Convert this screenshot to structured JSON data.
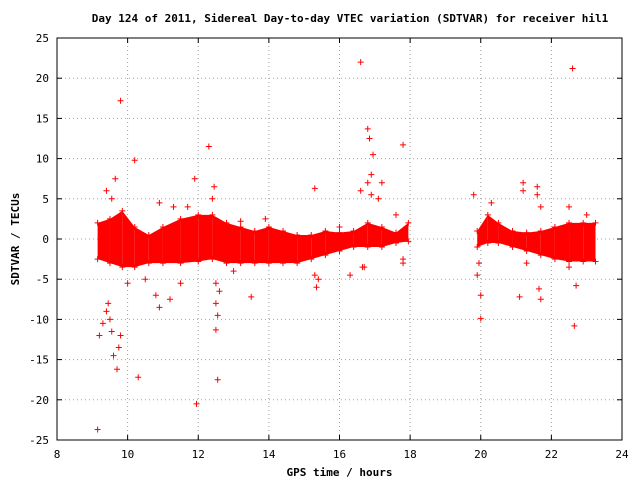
{
  "chart_data": {
    "type": "scatter",
    "title": "Day 124 of 2011, Sidereal Day-to-day VTEC variation (SDTVAR) for receiver hil1",
    "xlabel": "GPS time / hours",
    "ylabel": "SDTVAR / TECUs",
    "xlim": [
      8,
      24
    ],
    "ylim": [
      -25,
      25
    ],
    "x_ticks": [
      "8",
      "10",
      "12",
      "14",
      "16",
      "18",
      "20",
      "22",
      "24"
    ],
    "y_ticks": [
      "25",
      "20",
      "15",
      "10",
      "5",
      "0",
      "-5",
      "-10",
      "-15",
      "-20",
      "-25"
    ],
    "grid": true,
    "marker": "+",
    "color": "#ff0000",
    "series": [
      {
        "bands": [
          {
            "x": 9.15,
            "low": -2.5,
            "high": 2.0
          },
          {
            "x": 9.5,
            "low": -3.0,
            "high": 2.5
          },
          {
            "x": 9.85,
            "low": -3.5,
            "high": 3.5
          },
          {
            "x": 10.2,
            "low": -3.5,
            "high": 1.5
          },
          {
            "x": 10.6,
            "low": -3.0,
            "high": 0.5
          },
          {
            "x": 11.0,
            "low": -3.0,
            "high": 1.5
          },
          {
            "x": 11.5,
            "low": -3.0,
            "high": 2.5
          },
          {
            "x": 12.0,
            "low": -2.8,
            "high": 3.0
          },
          {
            "x": 12.4,
            "low": -2.5,
            "high": 3.0
          },
          {
            "x": 12.8,
            "low": -3.0,
            "high": 2.0
          },
          {
            "x": 13.2,
            "low": -3.0,
            "high": 1.5
          },
          {
            "x": 13.6,
            "low": -3.0,
            "high": 1.0
          },
          {
            "x": 14.0,
            "low": -3.0,
            "high": 1.5
          },
          {
            "x": 14.4,
            "low": -3.0,
            "high": 1.0
          },
          {
            "x": 14.8,
            "low": -3.0,
            "high": 0.5
          },
          {
            "x": 15.2,
            "low": -2.5,
            "high": 0.5
          },
          {
            "x": 15.6,
            "low": -2.0,
            "high": 1.0
          },
          {
            "x": 16.0,
            "low": -1.5,
            "high": 0.8
          },
          {
            "x": 16.4,
            "low": -1.0,
            "high": 1.0
          },
          {
            "x": 16.8,
            "low": -1.0,
            "high": 2.0
          },
          {
            "x": 17.2,
            "low": -1.0,
            "high": 1.5
          },
          {
            "x": 17.6,
            "low": -0.5,
            "high": 0.8
          },
          {
            "x": 17.95,
            "low": -0.3,
            "high": 2.0
          },
          {
            "x": 19.9,
            "low": -1.0,
            "high": 1.0
          },
          {
            "x": 20.2,
            "low": -0.5,
            "high": 3.0
          },
          {
            "x": 20.5,
            "low": -0.5,
            "high": 2.0
          },
          {
            "x": 20.9,
            "low": -1.0,
            "high": 1.0
          },
          {
            "x": 21.3,
            "low": -1.5,
            "high": 0.8
          },
          {
            "x": 21.7,
            "low": -2.0,
            "high": 1.0
          },
          {
            "x": 22.1,
            "low": -2.5,
            "high": 1.5
          },
          {
            "x": 22.5,
            "low": -2.8,
            "high": 2.0
          },
          {
            "x": 22.9,
            "low": -2.8,
            "high": 2.0
          },
          {
            "x": 23.25,
            "low": -2.8,
            "high": 2.0
          }
        ],
        "outliers": [
          [
            9.15,
            -23.7
          ],
          [
            9.2,
            -12.0
          ],
          [
            9.3,
            -10.5
          ],
          [
            9.4,
            -9.0
          ],
          [
            9.45,
            -8.0
          ],
          [
            9.5,
            -10.0
          ],
          [
            9.55,
            -11.5
          ],
          [
            9.6,
            -14.5
          ],
          [
            9.7,
            -16.2
          ],
          [
            9.75,
            -13.5
          ],
          [
            9.8,
            -12.0
          ],
          [
            9.8,
            17.2
          ],
          [
            9.65,
            7.5
          ],
          [
            9.4,
            6.0
          ],
          [
            9.55,
            5.0
          ],
          [
            10.2,
            9.8
          ],
          [
            10.3,
            -17.2
          ],
          [
            10.0,
            -5.5
          ],
          [
            10.5,
            -5.0
          ],
          [
            10.8,
            -7.0
          ],
          [
            10.9,
            -8.5
          ],
          [
            10.9,
            4.5
          ],
          [
            11.2,
            -7.5
          ],
          [
            11.5,
            -5.5
          ],
          [
            11.3,
            4.0
          ],
          [
            11.7,
            4.0
          ],
          [
            11.9,
            7.5
          ],
          [
            11.95,
            -20.5
          ],
          [
            12.3,
            11.5
          ],
          [
            12.45,
            6.5
          ],
          [
            12.4,
            5.0
          ],
          [
            12.55,
            -17.5
          ],
          [
            12.5,
            -11.3
          ],
          [
            12.55,
            -9.5
          ],
          [
            12.5,
            -8.0
          ],
          [
            12.6,
            -6.5
          ],
          [
            12.5,
            -5.5
          ],
          [
            13.0,
            -4.0
          ],
          [
            13.5,
            -7.2
          ],
          [
            13.2,
            2.2
          ],
          [
            13.9,
            2.5
          ],
          [
            15.3,
            6.3
          ],
          [
            15.35,
            -6.0
          ],
          [
            15.4,
            -5.0
          ],
          [
            15.3,
            -4.5
          ],
          [
            16.0,
            1.5
          ],
          [
            16.3,
            -4.5
          ],
          [
            16.6,
            22.0
          ],
          [
            16.6,
            6.0
          ],
          [
            16.7,
            -3.5
          ],
          [
            16.65,
            -3.5
          ],
          [
            16.8,
            13.7
          ],
          [
            16.85,
            12.5
          ],
          [
            16.95,
            10.5
          ],
          [
            16.9,
            8.0
          ],
          [
            16.8,
            7.0
          ],
          [
            16.9,
            5.5
          ],
          [
            17.2,
            7.0
          ],
          [
            17.1,
            5.0
          ],
          [
            17.6,
            3.0
          ],
          [
            17.8,
            11.7
          ],
          [
            17.8,
            -2.5
          ],
          [
            17.8,
            -3.0
          ],
          [
            19.8,
            5.5
          ],
          [
            19.9,
            -4.5
          ],
          [
            20.0,
            -7.0
          ],
          [
            20.0,
            -9.9
          ],
          [
            19.95,
            -3.0
          ],
          [
            20.3,
            4.5
          ],
          [
            21.1,
            -7.2
          ],
          [
            21.2,
            7.0
          ],
          [
            21.2,
            6.0
          ],
          [
            21.3,
            -3.0
          ],
          [
            21.6,
            6.5
          ],
          [
            21.65,
            -6.2
          ],
          [
            21.7,
            -7.5
          ],
          [
            21.6,
            5.5
          ],
          [
            21.7,
            4.0
          ],
          [
            22.5,
            4.0
          ],
          [
            22.6,
            21.2
          ],
          [
            22.65,
            -10.8
          ],
          [
            22.7,
            -5.8
          ],
          [
            22.5,
            -3.5
          ],
          [
            23.0,
            3.0
          ]
        ]
      }
    ]
  }
}
